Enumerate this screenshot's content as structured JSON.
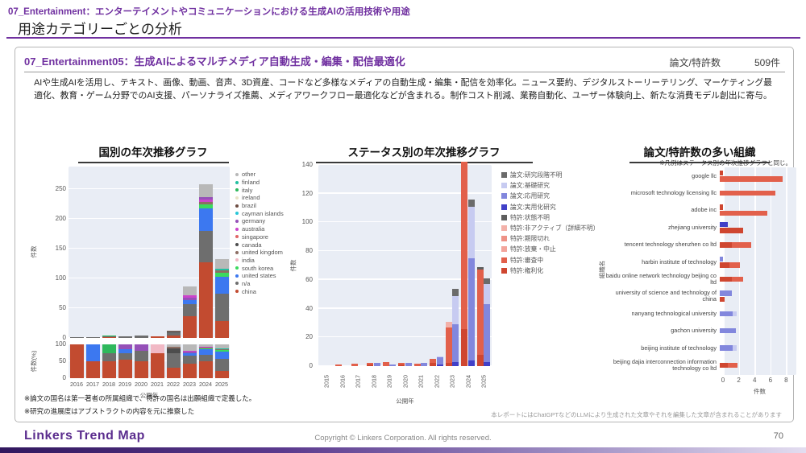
{
  "header": {
    "tag": "07_Entertainment：エンターテイメントやコミュニケーションにおける生成AIの活用技術や用途",
    "title": "用途カテゴリーごとの分析"
  },
  "section": {
    "title": "07_Entertainment05：生成AIによるマルチメディア自動生成・編集・配信最適化",
    "stat_label": "論文/特許数",
    "stat_value": "509件",
    "description": "AIや生成AIを活用し、テキスト、画像、動画、音声、3D資産、コードなど多様なメディアの自動生成・編集・配信を効率化。ニュース要約、デジタルストーリーテリング、マーケティング最適化、教育・ゲーム分野でのAI支援、パーソナライズ推薦、メディアワークフロー最適化などが含まれる。制作コスト削減、業務自動化、ユーザー体験向上、新たな消費モデル創出に寄与。"
  },
  "footnotes": {
    "note1": "※論文の国名は第一著者の所属組織で、特許の国名は出願組織で定義した。",
    "note2": "※研究の進展度はアブストラクトの内容を元に推察した",
    "llm_note": "本レポートにはChatGPTなどのLLMにより生成された文章やそれを編集した文章が含まれることがあります"
  },
  "footer": {
    "logo": "Linkers Trend Map",
    "copyright": "Copyright © Linkers Corporation. All rights reserved.",
    "page": "70"
  },
  "colors": {
    "accent_purple": "#7030a0",
    "plot_bg": "#e9edf5"
  },
  "chart_data": [
    {
      "type": "bar",
      "variant": "stacked-vertical-with-percent",
      "title": "国別の年次推移グラフ",
      "xlabel": "公開年",
      "ylabel": "件数",
      "ylabel_percent": "件数(%)",
      "years": [
        "2016",
        "2017",
        "2018",
        "2019",
        "2020",
        "2021",
        "2022",
        "2023",
        "2024",
        "2025"
      ],
      "countries": [
        {
          "key": "other",
          "label": "other",
          "color": "#b8b8b8"
        },
        {
          "key": "finland",
          "label": "finland",
          "color": "#22bfa0"
        },
        {
          "key": "italy",
          "label": "italy",
          "color": "#2eb85c"
        },
        {
          "key": "ireland",
          "label": "ireland",
          "color": "#e9e3c8"
        },
        {
          "key": "brazil",
          "label": "brazil",
          "color": "#6d4c41"
        },
        {
          "key": "cayman",
          "label": "cayman islands",
          "color": "#29c6d8"
        },
        {
          "key": "germany",
          "label": "germany",
          "color": "#9550b8"
        },
        {
          "key": "australia",
          "label": "australia",
          "color": "#cc44cc"
        },
        {
          "key": "singapore",
          "label": "singapore",
          "color": "#e06666"
        },
        {
          "key": "canada",
          "label": "canada",
          "color": "#4d4d4d"
        },
        {
          "key": "uk",
          "label": "united kingdom",
          "color": "#8d6e63"
        },
        {
          "key": "india",
          "label": "india",
          "color": "#f1b9c5"
        },
        {
          "key": "korea",
          "label": "south korea",
          "color": "#3bda5e"
        },
        {
          "key": "us",
          "label": "united states",
          "color": "#3c78f0"
        },
        {
          "key": "na",
          "label": "n/a",
          "color": "#6e6e6e"
        },
        {
          "key": "china",
          "label": "china",
          "color": "#c24b30"
        }
      ],
      "count": {
        "ylim": [
          0,
          250
        ],
        "ticks": [
          0,
          50,
          100,
          150,
          200,
          250
        ],
        "bars": {
          "2016": [
            [
              "na",
              2
            ]
          ],
          "2017": [
            [
              "na",
              2
            ]
          ],
          "2018": [
            [
              "china",
              1
            ],
            [
              "na",
              1.5
            ],
            [
              "italy",
              1
            ]
          ],
          "2019": [
            [
              "na",
              3
            ]
          ],
          "2020": [
            [
              "na",
              3.5
            ]
          ],
          "2021": [
            [
              "china",
              2.5
            ]
          ],
          "2022": [
            [
              "china",
              4
            ],
            [
              "na",
              5
            ],
            [
              "canada",
              2
            ],
            [
              "uk",
              1
            ]
          ],
          "2023": [
            [
              "china",
              37
            ],
            [
              "na",
              20
            ],
            [
              "us",
              6
            ],
            [
              "germany",
              4
            ],
            [
              "australia",
              4
            ],
            [
              "other",
              16
            ]
          ],
          "2024": [
            [
              "china",
              127
            ],
            [
              "na",
              53
            ],
            [
              "us",
              38
            ],
            [
              "korea",
              7
            ],
            [
              "uk",
              3
            ],
            [
              "australia",
              5
            ],
            [
              "germany",
              3
            ],
            [
              "other",
              22
            ]
          ],
          "2025": [
            [
              "china",
              28
            ],
            [
              "na",
              47
            ],
            [
              "us",
              28
            ],
            [
              "korea",
              7
            ],
            [
              "uk",
              3
            ],
            [
              "finland",
              3
            ],
            [
              "other",
              16
            ]
          ]
        }
      },
      "percent": {
        "ticks": [
          0,
          50,
          100
        ],
        "bars": {
          "2016": [
            [
              "china",
              100
            ]
          ],
          "2017": [
            [
              "china",
              50
            ],
            [
              "us",
              50
            ]
          ],
          "2018": [
            [
              "china",
              50
            ],
            [
              "na",
              25
            ],
            [
              "italy",
              25
            ]
          ],
          "2019": [
            [
              "china",
              55
            ],
            [
              "na",
              20
            ],
            [
              "us",
              10
            ],
            [
              "germany",
              15
            ]
          ],
          "2020": [
            [
              "china",
              50
            ],
            [
              "na",
              30
            ],
            [
              "germany",
              20
            ]
          ],
          "2021": [
            [
              "china",
              75
            ],
            [
              "india",
              25
            ]
          ],
          "2022": [
            [
              "china",
              30
            ],
            [
              "na",
              45
            ],
            [
              "canada",
              12
            ],
            [
              "uk",
              5
            ],
            [
              "other",
              8
            ]
          ],
          "2023": [
            [
              "china",
              43
            ],
            [
              "na",
              23
            ],
            [
              "us",
              7
            ],
            [
              "germany",
              5
            ],
            [
              "australia",
              4
            ],
            [
              "other",
              18
            ]
          ],
          "2024": [
            [
              "china",
              49
            ],
            [
              "na",
              21
            ],
            [
              "us",
              15
            ],
            [
              "korea",
              3
            ],
            [
              "uk",
              2
            ],
            [
              "australia",
              2
            ],
            [
              "other",
              8
            ]
          ],
          "2025": [
            [
              "china",
              21
            ],
            [
              "na",
              36
            ],
            [
              "us",
              21
            ],
            [
              "korea",
              5
            ],
            [
              "uk",
              2
            ],
            [
              "finland",
              2
            ],
            [
              "other",
              13
            ]
          ]
        }
      }
    },
    {
      "type": "bar",
      "variant": "grouped-stacked-vertical",
      "title": "ステータス別の年次推移グラフ",
      "xlabel": "公開年",
      "ylabel": "件数",
      "ylim": [
        0,
        140
      ],
      "ticks": [
        0,
        20,
        40,
        60,
        80,
        100,
        120,
        140
      ],
      "statuses": [
        {
          "key": "paper_unknown",
          "label": "論文:研究段階不明",
          "color": "#6b6b6b",
          "pattern": "none"
        },
        {
          "key": "paper_basic",
          "label": "論文:基礎研究",
          "color": "#c7cbf1",
          "pattern": "dot"
        },
        {
          "key": "paper_applied",
          "label": "論文:応用研究",
          "color": "#8287dd",
          "pattern": "diag"
        },
        {
          "key": "paper_practical",
          "label": "論文:実用化研究",
          "color": "#4140c8",
          "pattern": "cross"
        },
        {
          "key": "patent_unknown",
          "label": "特許:状態不明",
          "color": "#5e5e5e",
          "pattern": "none"
        },
        {
          "key": "patent_inactive",
          "label": "特許:非アクティブ（詳細不明）",
          "color": "#f3b1a9",
          "pattern": "none"
        },
        {
          "key": "patent_expired",
          "label": "特許:期限切れ",
          "color": "#ee9186",
          "pattern": "none"
        },
        {
          "key": "patent_abandoned",
          "label": "特許:放棄・中止",
          "color": "#f3a59c",
          "pattern": "dot"
        },
        {
          "key": "patent_examining",
          "label": "特許:審査中",
          "color": "#e2604b",
          "pattern": "diag"
        },
        {
          "key": "patent_granted",
          "label": "特許:権利化",
          "color": "#cf4630",
          "pattern": "cross"
        }
      ],
      "years": [
        "2015",
        "2016",
        "2017",
        "2018",
        "2019",
        "2020",
        "2021",
        "2022",
        "2023",
        "2024",
        "2025"
      ],
      "bars": [
        {
          "year": "2015",
          "patent": [],
          "paper": []
        },
        {
          "year": "2016",
          "patent": [
            [
              "patent_examining",
              1
            ]
          ],
          "paper": []
        },
        {
          "year": "2017",
          "patent": [
            [
              "patent_examining",
              1.5
            ]
          ],
          "paper": []
        },
        {
          "year": "2018",
          "patent": [
            [
              "patent_granted",
              1
            ],
            [
              "patent_examining",
              1
            ]
          ],
          "paper": [
            [
              "paper_applied",
              2
            ]
          ]
        },
        {
          "year": "2019",
          "patent": [
            [
              "patent_examining",
              3
            ]
          ],
          "paper": [
            [
              "paper_applied",
              1
            ]
          ]
        },
        {
          "year": "2020",
          "patent": [
            [
              "patent_granted",
              1
            ],
            [
              "patent_examining",
              1.5
            ]
          ],
          "paper": [
            [
              "paper_applied",
              2
            ]
          ]
        },
        {
          "year": "2021",
          "patent": [
            [
              "patent_examining",
              1.5
            ]
          ],
          "paper": [
            [
              "paper_applied",
              2
            ]
          ]
        },
        {
          "year": "2022",
          "patent": [
            [
              "patent_granted",
              2
            ],
            [
              "patent_examining",
              3
            ]
          ],
          "paper": [
            [
              "paper_practical",
              1
            ],
            [
              "paper_applied",
              5
            ],
            [
              "paper_basic",
              1
            ]
          ]
        },
        {
          "year": "2023",
          "patent": [
            [
              "patent_granted",
              2
            ],
            [
              "patent_examining",
              25
            ],
            [
              "patent_inactive",
              4
            ]
          ],
          "paper": [
            [
              "paper_practical",
              3
            ],
            [
              "paper_applied",
              26
            ],
            [
              "paper_basic",
              20
            ],
            [
              "paper_unknown",
              5
            ]
          ]
        },
        {
          "year": "2024",
          "patent": [
            [
              "patent_granted",
              26
            ],
            [
              "patent_examining",
              116
            ]
          ],
          "paper": [
            [
              "paper_practical",
              4
            ],
            [
              "paper_applied",
              71
            ],
            [
              "paper_basic",
              36
            ],
            [
              "paper_unknown",
              5
            ]
          ]
        },
        {
          "year": "2025",
          "patent": [
            [
              "patent_granted",
              8
            ],
            [
              "patent_examining",
              59
            ],
            [
              "patent_unknown",
              2
            ]
          ],
          "paper": [
            [
              "paper_practical",
              3
            ],
            [
              "paper_applied",
              40
            ],
            [
              "paper_basic",
              14
            ],
            [
              "paper_unknown",
              4
            ]
          ]
        }
      ]
    },
    {
      "type": "bar",
      "variant": "horizontal-stacked",
      "title": "論文/特許数の多い組織",
      "note": "※凡例はステータス別の年次推移グラフと同じ。",
      "xlabel": "件数",
      "ylabel": "組織名",
      "xlim": [
        0,
        8
      ],
      "ticks": [
        0,
        2,
        4,
        6,
        8
      ],
      "orgs": [
        {
          "name": "google llc",
          "bars": [
            [
              [
                "patent_granted",
                0.6
              ]
            ],
            [
              [
                "patent_examining",
                8
              ]
            ]
          ]
        },
        {
          "name": "microsoft technology licensing llc",
          "bars": [
            [
              [
                "patent_examining",
                7
              ]
            ]
          ]
        },
        {
          "name": "adobe inc",
          "bars": [
            [
              [
                "patent_granted",
                0.6
              ]
            ],
            [
              [
                "patent_examining",
                6
              ]
            ]
          ]
        },
        {
          "name": "zhejiang university",
          "bars": [
            [
              [
                "paper_practical",
                1
              ]
            ],
            [
              [
                "patent_granted",
                3
              ]
            ]
          ]
        },
        {
          "name": "tencent technology shenzhen co ltd",
          "bars": [
            [
              [
                "patent_granted",
                1.5
              ],
              [
                "patent_examining",
                2.5
              ]
            ]
          ]
        },
        {
          "name": "harbin institute of technology",
          "bars": [
            [
              [
                "paper_applied",
                0.6
              ]
            ],
            [
              [
                "patent_granted",
                1.2
              ],
              [
                "patent_examining",
                1.3
              ]
            ]
          ]
        },
        {
          "name": "baidu online network technology beijing co ltd",
          "bars": [
            [
              [
                "patent_granted",
                1.5
              ],
              [
                "patent_examining",
                1.5
              ]
            ]
          ]
        },
        {
          "name": "university of science and technology of china",
          "bars": [
            [
              [
                "paper_applied",
                1.5
              ]
            ],
            [
              [
                "patent_granted",
                0.8
              ]
            ]
          ]
        },
        {
          "name": "nanyang technological university",
          "bars": [
            [
              [
                "paper_applied",
                1.6
              ],
              [
                "paper_basic",
                0.5
              ]
            ]
          ]
        },
        {
          "name": "gachon university",
          "bars": [
            [
              [
                "paper_applied",
                2
              ]
            ]
          ]
        },
        {
          "name": "beijing institute of technology",
          "bars": [
            [
              [
                "paper_applied",
                1.6
              ],
              [
                "paper_basic",
                0.5
              ]
            ]
          ]
        },
        {
          "name": "beijing dajia interconnection information technology co ltd",
          "bars": [
            [
              [
                "patent_granted",
                1
              ],
              [
                "patent_examining",
                1.2
              ]
            ]
          ]
        }
      ]
    }
  ]
}
